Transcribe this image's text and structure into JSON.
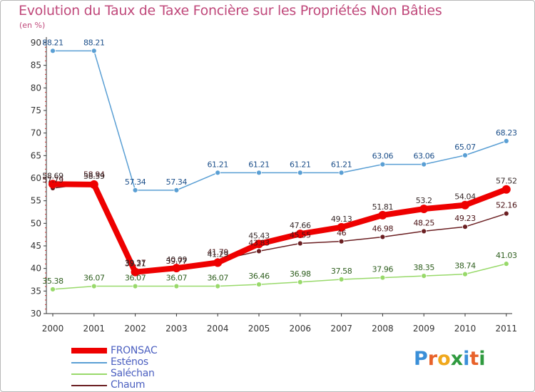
{
  "title": "Evolution du Taux de Taxe Foncière sur les Propriétés Non Bâties",
  "subtitle": "(en %)",
  "logo": {
    "text": "Proxiti",
    "letters": [
      "P",
      "r",
      "o",
      "x",
      "i",
      "t",
      "i"
    ],
    "colors": [
      "#3a8fd8",
      "#e8622a",
      "#f0a81c",
      "#2f9a3f",
      "#3a8fd8",
      "#e8622a",
      "#2f9a3f"
    ]
  },
  "chart_data": {
    "type": "line",
    "x": [
      "2000",
      "2001",
      "2002",
      "2003",
      "2004",
      "2005",
      "2006",
      "2007",
      "2008",
      "2009",
      "2010",
      "2011"
    ],
    "ylim": [
      30,
      90
    ],
    "yticks": [
      "30",
      "35",
      "40",
      "45",
      "50",
      "55",
      "60",
      "65",
      "70",
      "75",
      "80",
      "85",
      "90"
    ],
    "grid": false,
    "legend_position": "bottom-left",
    "series": [
      {
        "name": "Esténos",
        "color": "#5a9fd4",
        "values": [
          88.21,
          88.21,
          57.34,
          57.34,
          61.21,
          61.21,
          61.21,
          61.21,
          63.06,
          63.06,
          65.07,
          68.23
        ],
        "labels": [
          "88.21",
          "88.21",
          "57.34",
          "57.34",
          "61.21",
          "61.21",
          "61.21",
          "61.21",
          "63.06",
          "63.06",
          "65.07",
          "68.23"
        ]
      },
      {
        "name": "Saléchan",
        "color": "#98d96a",
        "values": [
          35.38,
          36.07,
          36.07,
          36.07,
          36.07,
          36.46,
          36.98,
          37.58,
          37.96,
          38.35,
          38.74,
          41.03
        ],
        "labels": [
          "35.38",
          "36.07",
          "36.07",
          "36.07",
          "36.07",
          "36.46",
          "36.98",
          "37.58",
          "37.96",
          "38.35",
          "38.74",
          "41.03"
        ]
      },
      {
        "name": "Chaum",
        "color": "#6b1f22",
        "values": [
          57.79,
          58.94,
          39.37,
          39.77,
          41.79,
          43.83,
          45.55,
          46.0,
          46.98,
          48.25,
          49.23,
          52.16
        ],
        "labels": [
          "57.79",
          "58.94",
          "39.37",
          "39.77",
          "41.79",
          "43.83",
          "45.55",
          "46",
          "46.98",
          "48.25",
          "49.23",
          "52.16"
        ]
      },
      {
        "name": "FRONSAC",
        "color": "#ee0000",
        "values": [
          58.69,
          58.59,
          39.21,
          40.09,
          41.29,
          45.43,
          47.66,
          49.13,
          51.81,
          53.2,
          54.04,
          57.52
        ],
        "labels": [
          "58.69",
          "58.59",
          "39.21",
          "40.09",
          "41.29",
          "45.43",
          "47.66",
          "49.13",
          "51.81",
          "53.2",
          "54.04",
          "57.52"
        ]
      }
    ],
    "legend": [
      "FRONSAC",
      "Esténos",
      "Saléchan",
      "Chaum"
    ]
  }
}
